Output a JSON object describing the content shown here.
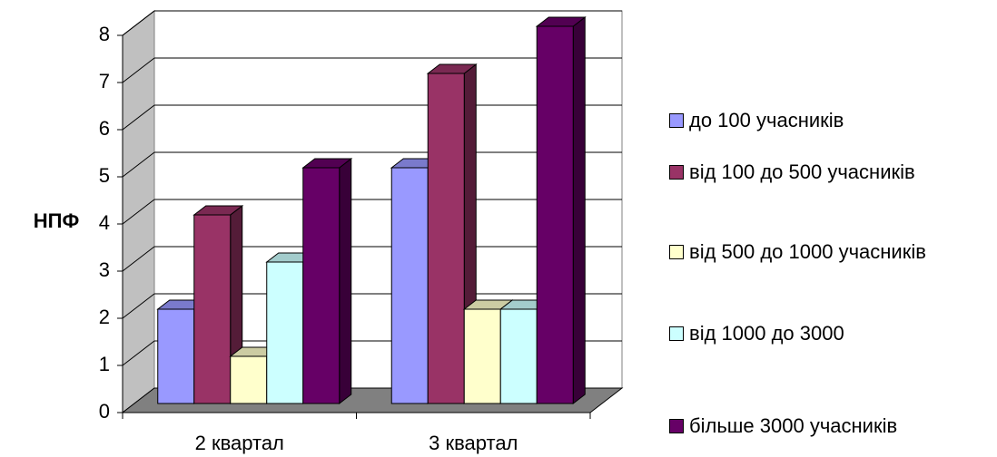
{
  "chart_data": {
    "type": "bar3d",
    "y_label": "НПФ",
    "categories": [
      "2 квартал",
      "3 квартал"
    ],
    "series": [
      {
        "name": "до 100 учасників",
        "color": "#9999ff",
        "values": [
          2,
          5
        ]
      },
      {
        "name": "від 100 до 500 учасників",
        "color": "#993366",
        "values": [
          4,
          7
        ]
      },
      {
        "name": "від 500 до 1000 учасників",
        "color": "#ffffcc",
        "values": [
          1,
          2
        ]
      },
      {
        "name": "від 1000 до 3000",
        "color": "#ccffff",
        "values": [
          3,
          2
        ]
      },
      {
        "name": "більше 3000 учасників",
        "color": "#660066",
        "values": [
          5,
          8
        ]
      }
    ],
    "ylim": [
      0,
      8
    ],
    "yticks": [
      0,
      1,
      2,
      3,
      4,
      5,
      6,
      7,
      8
    ],
    "grid": true,
    "legend": "right"
  }
}
